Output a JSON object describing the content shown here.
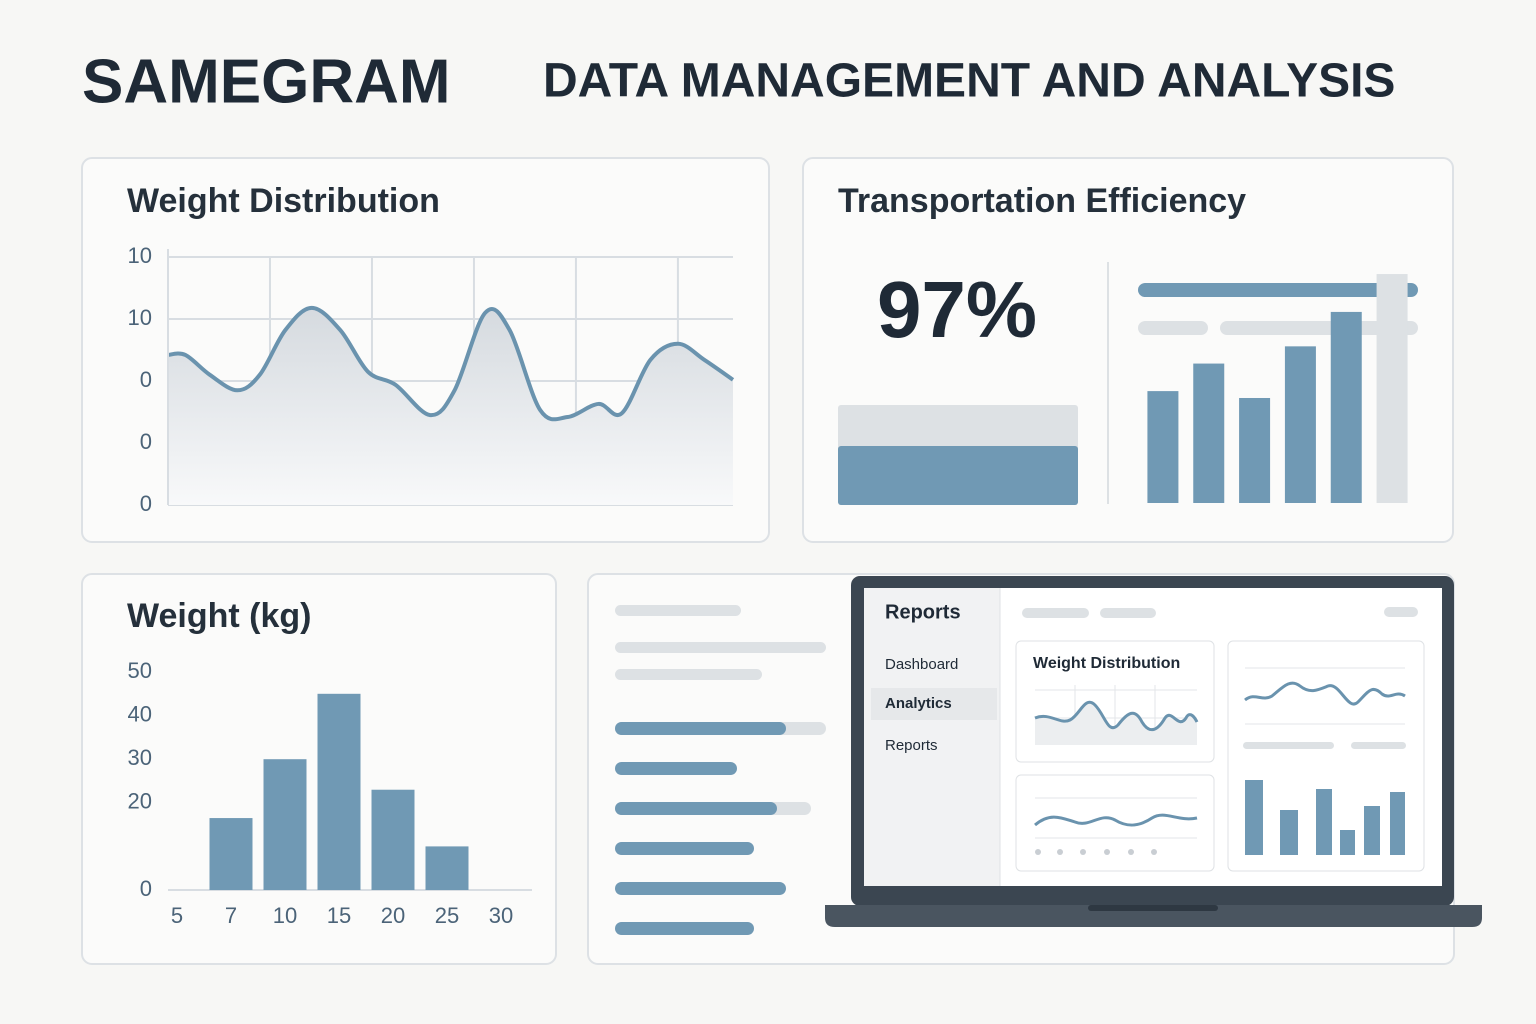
{
  "header": {
    "brand": "SAMEGRAM",
    "title": "DATA MANAGEMENT AND ANALYSIS"
  },
  "chart_data": [
    {
      "type": "line",
      "title": "Weight Distribution",
      "x": [
        0,
        0.17,
        0.41,
        0.68,
        0.9,
        1.15,
        1.41,
        1.69,
        1.96,
        2.23,
        2.57,
        2.81,
        3.11,
        3.35,
        3.65,
        3.92,
        4.22,
        4.45,
        4.73,
        5.0,
        5.26,
        5.54
      ],
      "values": [
        2.42,
        2.42,
        2.1,
        1.85,
        2.1,
        2.82,
        3.18,
        2.82,
        2.15,
        1.94,
        1.45,
        1.85,
        3.1,
        2.82,
        1.53,
        1.42,
        1.63,
        1.48,
        2.34,
        2.6,
        2.34,
        2.02
      ],
      "color": "#6a93ae",
      "xlim": [
        0,
        5.54
      ],
      "xticks": [
        0,
        1,
        2,
        3,
        4,
        5
      ],
      "ylim": [
        0,
        4
      ],
      "yticks": [
        0,
        {
          "value": 1,
          "label": "0"
        },
        {
          "value": 2,
          "label": "0"
        },
        {
          "value": 3,
          "label": "10"
        },
        {
          "value": 4,
          "label": "10"
        }
      ],
      "grid": true
    },
    {
      "type": "bar",
      "title": "Transportation Efficiency",
      "kpi": "97%",
      "values": [
        65,
        81,
        61,
        91,
        111,
        133
      ],
      "colors": [
        "#7099b4",
        "#7099b4",
        "#7099b4",
        "#7099b4",
        "#7099b4",
        "#dde1e4"
      ],
      "ylim": [
        0,
        140
      ]
    },
    {
      "type": "bar",
      "title": "Weight (kg)",
      "categories": [
        "5",
        "7",
        "10",
        "15",
        "20",
        "25",
        "30"
      ],
      "values": [
        null,
        16.5,
        30,
        45,
        23,
        10,
        null
      ],
      "color": "#7099b4",
      "ylim": [
        0,
        50
      ],
      "yticks": [
        0,
        20,
        30,
        40,
        50
      ]
    }
  ],
  "laptop": {
    "sidebar_title": "Reports",
    "nav": [
      "Dashboard",
      "Analytics",
      "Reports"
    ],
    "active_nav": 1,
    "card_title": "Weight Distribution"
  }
}
